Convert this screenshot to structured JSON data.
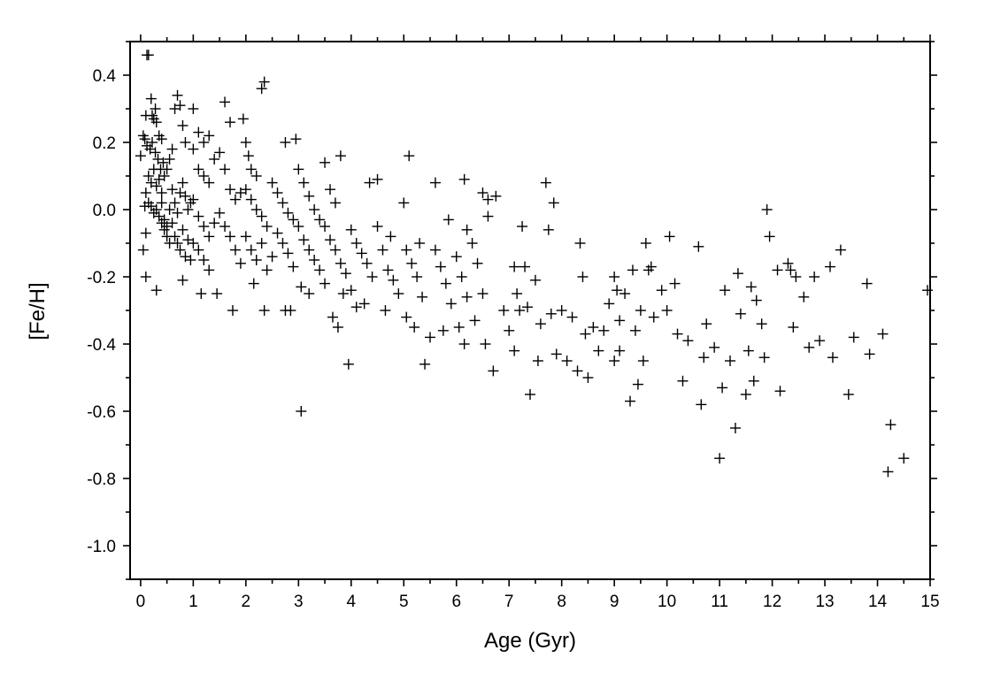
{
  "chart_data": {
    "type": "scatter",
    "title": "",
    "xlabel": "Age (Gyr)",
    "ylabel": "[Fe/H]",
    "xlim": [
      -0.2,
      15.0
    ],
    "ylim": [
      -1.1,
      0.5
    ],
    "xticks": [
      "0",
      "1",
      "2",
      "3",
      "4",
      "5",
      "6",
      "7",
      "8",
      "9",
      "10",
      "11",
      "12",
      "13",
      "14",
      "15"
    ],
    "yticks": [
      "0.4",
      "0.2",
      "0.0",
      "-0.2",
      "-0.4",
      "-0.6",
      "-0.8",
      "-1.0"
    ],
    "marker": "plus",
    "grid": false,
    "legend": "none",
    "series": [
      {
        "points": [
          [
            0.12,
            0.46
          ],
          [
            0.15,
            0.46
          ],
          [
            0.2,
            0.33
          ],
          [
            0.22,
            0.28
          ],
          [
            0.25,
            0.27
          ],
          [
            0.28,
            0.3
          ],
          [
            0.3,
            0.26
          ],
          [
            0.35,
            0.22
          ],
          [
            0.4,
            0.21
          ],
          [
            0.1,
            0.28
          ],
          [
            0.05,
            0.22
          ],
          [
            0.0,
            0.16
          ],
          [
            0.08,
            0.21
          ],
          [
            0.12,
            0.19
          ],
          [
            0.18,
            0.18
          ],
          [
            0.22,
            0.2
          ],
          [
            0.28,
            0.17
          ],
          [
            0.33,
            0.15
          ],
          [
            0.38,
            0.12
          ],
          [
            0.43,
            0.14
          ],
          [
            0.15,
            0.1
          ],
          [
            0.2,
            0.08
          ],
          [
            0.25,
            0.12
          ],
          [
            0.3,
            0.07
          ],
          [
            0.35,
            0.09
          ],
          [
            0.4,
            0.05
          ],
          [
            0.45,
            0.1
          ],
          [
            0.5,
            0.12
          ],
          [
            0.55,
            0.15
          ],
          [
            0.1,
            0.05
          ],
          [
            0.15,
            0.02
          ],
          [
            0.2,
            0.01
          ],
          [
            0.25,
            -0.01
          ],
          [
            0.3,
            0.0
          ],
          [
            0.35,
            -0.02
          ],
          [
            0.4,
            0.02
          ],
          [
            0.45,
            -0.03
          ],
          [
            0.5,
            -0.05
          ],
          [
            0.55,
            0.0
          ],
          [
            0.08,
            0.01
          ],
          [
            0.1,
            -0.07
          ],
          [
            0.05,
            -0.12
          ],
          [
            0.1,
            -0.2
          ],
          [
            0.3,
            -0.24
          ],
          [
            0.6,
            0.18
          ],
          [
            0.65,
            0.3
          ],
          [
            0.7,
            0.34
          ],
          [
            0.75,
            0.31
          ],
          [
            0.8,
            0.25
          ],
          [
            0.85,
            0.2
          ],
          [
            0.6,
            0.06
          ],
          [
            0.65,
            0.02
          ],
          [
            0.7,
            -0.01
          ],
          [
            0.75,
            0.05
          ],
          [
            0.8,
            0.08
          ],
          [
            0.85,
            0.04
          ],
          [
            0.9,
            0.0
          ],
          [
            0.95,
            0.02
          ],
          [
            0.6,
            -0.04
          ],
          [
            0.65,
            -0.08
          ],
          [
            0.7,
            -0.1
          ],
          [
            0.75,
            -0.12
          ],
          [
            0.8,
            -0.06
          ],
          [
            0.85,
            -0.14
          ],
          [
            0.9,
            -0.09
          ],
          [
            0.95,
            -0.15
          ],
          [
            0.55,
            -0.1
          ],
          [
            0.5,
            -0.08
          ],
          [
            0.45,
            -0.06
          ],
          [
            0.4,
            -0.04
          ],
          [
            1.0,
            0.3
          ],
          [
            1.1,
            0.23
          ],
          [
            1.2,
            0.2
          ],
          [
            1.3,
            0.22
          ],
          [
            1.0,
            0.18
          ],
          [
            1.1,
            0.12
          ],
          [
            1.2,
            0.1
          ],
          [
            1.3,
            0.08
          ],
          [
            1.4,
            0.15
          ],
          [
            1.5,
            0.17
          ],
          [
            1.0,
            0.03
          ],
          [
            1.1,
            -0.02
          ],
          [
            1.2,
            -0.05
          ],
          [
            1.3,
            -0.08
          ],
          [
            1.4,
            -0.04
          ],
          [
            1.5,
            -0.01
          ],
          [
            1.0,
            -0.1
          ],
          [
            1.1,
            -0.12
          ],
          [
            1.2,
            -0.15
          ],
          [
            1.3,
            -0.18
          ],
          [
            1.15,
            -0.25
          ],
          [
            1.45,
            -0.25
          ],
          [
            0.8,
            -0.21
          ],
          [
            1.6,
            0.32
          ],
          [
            1.7,
            0.26
          ],
          [
            1.6,
            0.12
          ],
          [
            1.7,
            0.06
          ],
          [
            1.8,
            0.03
          ],
          [
            1.9,
            0.05
          ],
          [
            1.6,
            -0.05
          ],
          [
            1.7,
            -0.08
          ],
          [
            1.8,
            -0.12
          ],
          [
            1.9,
            -0.16
          ],
          [
            1.75,
            -0.3
          ],
          [
            1.95,
            0.27
          ],
          [
            2.0,
            0.2
          ],
          [
            2.05,
            0.16
          ],
          [
            2.1,
            0.12
          ],
          [
            2.2,
            0.1
          ],
          [
            2.3,
            0.36
          ],
          [
            2.35,
            0.38
          ],
          [
            2.0,
            0.06
          ],
          [
            2.1,
            0.03
          ],
          [
            2.2,
            0.0
          ],
          [
            2.3,
            -0.02
          ],
          [
            2.4,
            -0.05
          ],
          [
            2.0,
            -0.08
          ],
          [
            2.1,
            -0.12
          ],
          [
            2.2,
            -0.15
          ],
          [
            2.3,
            -0.1
          ],
          [
            2.4,
            -0.18
          ],
          [
            2.5,
            -0.14
          ],
          [
            2.15,
            -0.22
          ],
          [
            2.35,
            -0.3
          ],
          [
            2.5,
            0.08
          ],
          [
            2.6,
            0.05
          ],
          [
            2.7,
            0.02
          ],
          [
            2.8,
            -0.01
          ],
          [
            2.9,
            -0.03
          ],
          [
            2.6,
            -0.07
          ],
          [
            2.7,
            -0.1
          ],
          [
            2.8,
            -0.13
          ],
          [
            2.9,
            -0.17
          ],
          [
            2.75,
            0.2
          ],
          [
            2.95,
            0.21
          ],
          [
            2.75,
            -0.3
          ],
          [
            2.85,
            -0.3
          ],
          [
            3.0,
            0.12
          ],
          [
            3.1,
            0.08
          ],
          [
            3.2,
            0.04
          ],
          [
            3.3,
            0.0
          ],
          [
            3.4,
            -0.03
          ],
          [
            3.0,
            -0.05
          ],
          [
            3.1,
            -0.09
          ],
          [
            3.2,
            -0.12
          ],
          [
            3.3,
            -0.15
          ],
          [
            3.4,
            -0.18
          ],
          [
            3.05,
            -0.23
          ],
          [
            3.2,
            -0.25
          ],
          [
            3.05,
            -0.6
          ],
          [
            3.5,
            0.14
          ],
          [
            3.6,
            0.06
          ],
          [
            3.7,
            0.02
          ],
          [
            3.5,
            -0.05
          ],
          [
            3.6,
            -0.09
          ],
          [
            3.7,
            -0.12
          ],
          [
            3.8,
            -0.16
          ],
          [
            3.9,
            -0.19
          ],
          [
            3.5,
            -0.22
          ],
          [
            3.65,
            -0.32
          ],
          [
            3.75,
            -0.35
          ],
          [
            3.8,
            0.16
          ],
          [
            3.85,
            -0.25
          ],
          [
            3.95,
            -0.46
          ],
          [
            4.0,
            -0.06
          ],
          [
            4.1,
            -0.1
          ],
          [
            4.2,
            -0.13
          ],
          [
            4.3,
            -0.16
          ],
          [
            4.4,
            -0.2
          ],
          [
            4.0,
            -0.24
          ],
          [
            4.1,
            -0.29
          ],
          [
            4.25,
            -0.28
          ],
          [
            4.35,
            0.08
          ],
          [
            4.5,
            0.09
          ],
          [
            4.5,
            -0.05
          ],
          [
            4.6,
            -0.12
          ],
          [
            4.7,
            -0.18
          ],
          [
            4.8,
            -0.21
          ],
          [
            4.9,
            -0.25
          ],
          [
            4.65,
            -0.3
          ],
          [
            4.75,
            -0.08
          ],
          [
            5.0,
            0.02
          ],
          [
            5.1,
            0.16
          ],
          [
            5.05,
            -0.12
          ],
          [
            5.15,
            -0.16
          ],
          [
            5.25,
            -0.2
          ],
          [
            5.35,
            -0.26
          ],
          [
            5.05,
            -0.32
          ],
          [
            5.2,
            -0.35
          ],
          [
            5.3,
            -0.1
          ],
          [
            5.4,
            -0.46
          ],
          [
            5.5,
            -0.38
          ],
          [
            5.6,
            0.08
          ],
          [
            5.6,
            -0.12
          ],
          [
            5.7,
            -0.17
          ],
          [
            5.8,
            -0.22
          ],
          [
            5.9,
            -0.28
          ],
          [
            5.75,
            -0.36
          ],
          [
            5.85,
            -0.03
          ],
          [
            6.0,
            -0.14
          ],
          [
            6.1,
            -0.2
          ],
          [
            6.2,
            -0.26
          ],
          [
            6.15,
            0.09
          ],
          [
            6.2,
            -0.06
          ],
          [
            6.05,
            -0.35
          ],
          [
            6.15,
            -0.4
          ],
          [
            6.3,
            -0.1
          ],
          [
            6.4,
            -0.16
          ],
          [
            6.5,
            -0.25
          ],
          [
            6.35,
            -0.33
          ],
          [
            6.5,
            0.05
          ],
          [
            6.6,
            0.03
          ],
          [
            6.6,
            -0.02
          ],
          [
            6.55,
            -0.4
          ],
          [
            6.7,
            -0.48
          ],
          [
            6.75,
            0.04
          ],
          [
            6.9,
            -0.3
          ],
          [
            7.0,
            -0.36
          ],
          [
            7.1,
            -0.17
          ],
          [
            7.15,
            -0.25
          ],
          [
            7.2,
            -0.3
          ],
          [
            7.25,
            -0.05
          ],
          [
            7.1,
            -0.42
          ],
          [
            7.3,
            -0.17
          ],
          [
            7.35,
            -0.29
          ],
          [
            7.4,
            -0.55
          ],
          [
            7.5,
            -0.21
          ],
          [
            7.55,
            -0.45
          ],
          [
            7.6,
            -0.34
          ],
          [
            7.7,
            0.08
          ],
          [
            7.75,
            -0.06
          ],
          [
            7.8,
            -0.31
          ],
          [
            7.85,
            0.02
          ],
          [
            7.9,
            -0.43
          ],
          [
            8.0,
            -0.3
          ],
          [
            8.1,
            -0.45
          ],
          [
            8.2,
            -0.32
          ],
          [
            8.3,
            -0.48
          ],
          [
            8.35,
            -0.1
          ],
          [
            8.4,
            -0.2
          ],
          [
            8.45,
            -0.37
          ],
          [
            8.5,
            -0.5
          ],
          [
            8.6,
            -0.35
          ],
          [
            8.7,
            -0.42
          ],
          [
            8.8,
            -0.36
          ],
          [
            8.9,
            -0.28
          ],
          [
            9.0,
            -0.2
          ],
          [
            9.05,
            -0.24
          ],
          [
            9.1,
            -0.33
          ],
          [
            9.0,
            -0.45
          ],
          [
            9.1,
            -0.42
          ],
          [
            9.2,
            -0.25
          ],
          [
            9.3,
            -0.57
          ],
          [
            9.35,
            -0.18
          ],
          [
            9.4,
            -0.36
          ],
          [
            9.45,
            -0.52
          ],
          [
            9.5,
            -0.3
          ],
          [
            9.55,
            -0.45
          ],
          [
            9.6,
            -0.1
          ],
          [
            9.65,
            -0.18
          ],
          [
            9.7,
            -0.17
          ],
          [
            9.75,
            -0.32
          ],
          [
            9.9,
            -0.24
          ],
          [
            10.0,
            -0.3
          ],
          [
            10.05,
            -0.08
          ],
          [
            10.15,
            -0.22
          ],
          [
            10.2,
            -0.37
          ],
          [
            10.3,
            -0.51
          ],
          [
            10.4,
            -0.39
          ],
          [
            10.6,
            -0.11
          ],
          [
            10.65,
            -0.58
          ],
          [
            10.7,
            -0.44
          ],
          [
            10.75,
            -0.34
          ],
          [
            10.9,
            -0.41
          ],
          [
            11.0,
            -0.74
          ],
          [
            11.05,
            -0.53
          ],
          [
            11.1,
            -0.24
          ],
          [
            11.2,
            -0.45
          ],
          [
            11.3,
            -0.65
          ],
          [
            11.35,
            -0.19
          ],
          [
            11.4,
            -0.31
          ],
          [
            11.5,
            -0.55
          ],
          [
            11.55,
            -0.42
          ],
          [
            11.6,
            -0.23
          ],
          [
            11.65,
            -0.51
          ],
          [
            11.7,
            -0.27
          ],
          [
            11.8,
            -0.34
          ],
          [
            11.85,
            -0.44
          ],
          [
            11.9,
            0.0
          ],
          [
            11.95,
            -0.08
          ],
          [
            12.1,
            -0.18
          ],
          [
            12.15,
            -0.54
          ],
          [
            12.3,
            -0.16
          ],
          [
            12.35,
            -0.18
          ],
          [
            12.4,
            -0.35
          ],
          [
            12.45,
            -0.2
          ],
          [
            12.6,
            -0.26
          ],
          [
            12.7,
            -0.41
          ],
          [
            12.8,
            -0.2
          ],
          [
            12.9,
            -0.39
          ],
          [
            13.1,
            -0.17
          ],
          [
            13.15,
            -0.44
          ],
          [
            13.3,
            -0.12
          ],
          [
            13.45,
            -0.55
          ],
          [
            13.55,
            -0.38
          ],
          [
            13.8,
            -0.22
          ],
          [
            13.85,
            -0.43
          ],
          [
            14.1,
            -0.37
          ],
          [
            14.2,
            -0.78
          ],
          [
            14.25,
            -0.64
          ],
          [
            14.5,
            -0.74
          ],
          [
            14.95,
            -0.24
          ]
        ]
      }
    ]
  }
}
